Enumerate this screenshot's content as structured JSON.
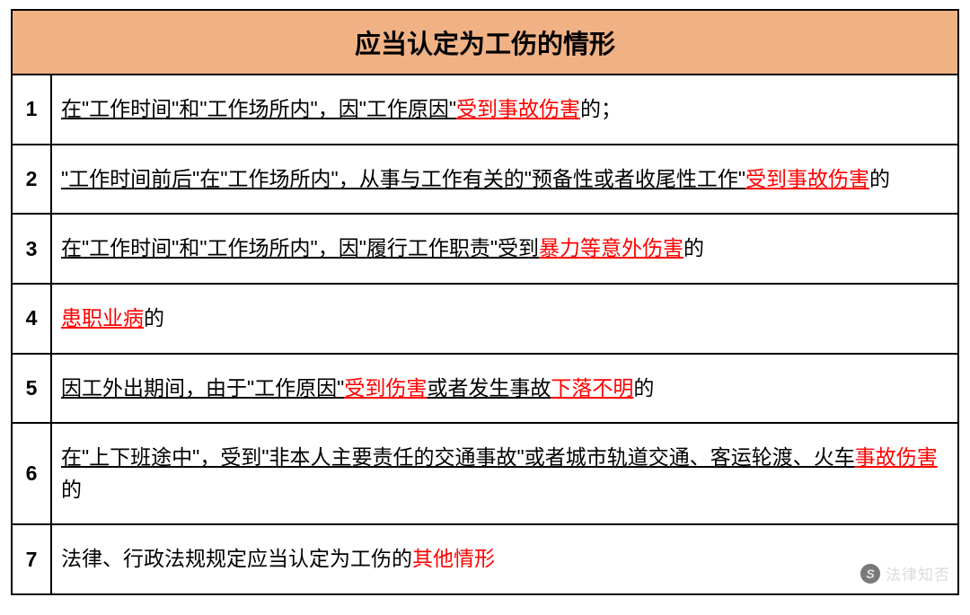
{
  "table": {
    "title": "应当认定为工伤的情形",
    "border_color": "#000000",
    "border_width": "2.2px",
    "header_bg": "#f0b285",
    "header_fontsize": "29px",
    "cell_fontsize": "23px",
    "text_color": "#000000",
    "highlight_color": "#ff0000",
    "num_col_width": 44,
    "rows": [
      {
        "num": "1",
        "segments": [
          {
            "text": "在",
            "u": true
          },
          {
            "text": "\"工作时间\"",
            "u": true
          },
          {
            "text": "和",
            "u": true
          },
          {
            "text": "\"工作场所内\"",
            "u": true
          },
          {
            "text": "，因",
            "u": true
          },
          {
            "text": "\"工作原因\"",
            "u": true
          },
          {
            "text": "受到事故伤害",
            "u": true,
            "hl": true
          },
          {
            "text": "的；"
          }
        ]
      },
      {
        "num": "2",
        "segments": [
          {
            "text": "\"工作时间前后\"",
            "u": true
          },
          {
            "text": "在",
            "u": true
          },
          {
            "text": "\"工作场所内\"",
            "u": true
          },
          {
            "text": "，",
            "u": true
          },
          {
            "text": "从事与工作有关的",
            "u": true
          },
          {
            "text": "\"预备性或者收尾性工作\"",
            "u": true
          },
          {
            "text": "受到事故伤害",
            "u": true,
            "hl": true
          },
          {
            "text": "的"
          }
        ]
      },
      {
        "num": "3",
        "segments": [
          {
            "text": "在",
            "u": true
          },
          {
            "text": "\"工作时间\"",
            "u": true
          },
          {
            "text": "和",
            "u": true
          },
          {
            "text": "\"工作场所内\"",
            "u": true
          },
          {
            "text": "，因",
            "u": true
          },
          {
            "text": "\"履行工作职责\"",
            "u": true
          },
          {
            "text": "受到",
            "u": true
          },
          {
            "text": "暴力等意外伤害",
            "u": true,
            "hl": true
          },
          {
            "text": "的"
          }
        ]
      },
      {
        "num": "4",
        "segments": [
          {
            "text": "患职业病",
            "u": true,
            "hl": true
          },
          {
            "text": "的"
          }
        ]
      },
      {
        "num": "5",
        "segments": [
          {
            "text": "因工外出期间，由于",
            "u": true
          },
          {
            "text": "\"工作原因\"",
            "u": true
          },
          {
            "text": "受到伤害",
            "u": true,
            "hl": true
          },
          {
            "text": "或者发生事故",
            "u": true
          },
          {
            "text": "下落不明",
            "u": true,
            "hl": true
          },
          {
            "text": "的"
          }
        ]
      },
      {
        "num": "6",
        "segments": [
          {
            "text": "在",
            "u": true
          },
          {
            "text": "\"上下班途中\"",
            "u": true
          },
          {
            "text": "，受到",
            "u": true
          },
          {
            "text": "\"非本人主要责任的交通事故\"",
            "u": true
          },
          {
            "text": "或者城市轨道交通、客运轮渡、火车",
            "u": true
          },
          {
            "text": "事故伤害",
            "u": true,
            "hl": true
          },
          {
            "text": "的"
          }
        ]
      },
      {
        "num": "7",
        "segments": [
          {
            "text": "法律、行政法规规定应当认定为工伤的"
          },
          {
            "text": "其他情形",
            "hl": true
          }
        ]
      }
    ]
  },
  "watermark": {
    "icon_bg": "#6b6b6b",
    "icon_color": "#e2e2e2",
    "icon_text": "S",
    "label": "法律知否",
    "label_color": "#d8d8d8"
  }
}
